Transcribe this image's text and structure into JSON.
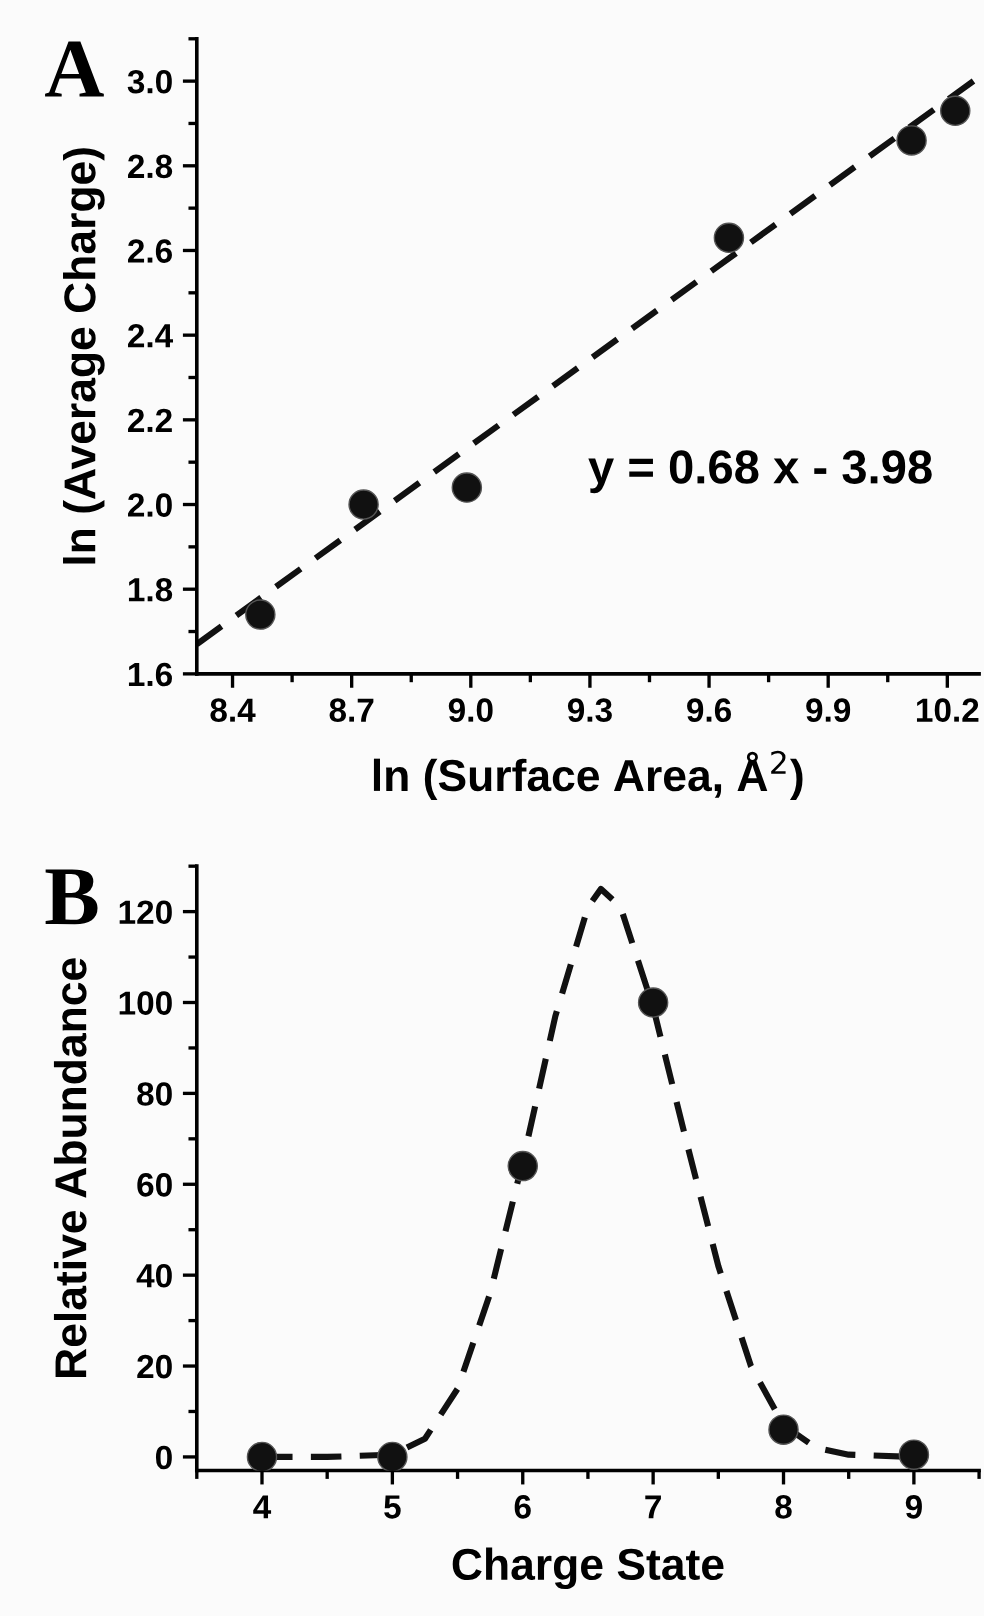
{
  "chart_data": [
    {
      "type": "scatter",
      "title": "A",
      "xlabel": "ln (Surface Area, Å$^{2}$)",
      "ylabel": "ln (Average Charge)",
      "xlim": [
        8.31,
        10.28
      ],
      "ylim": [
        1.6,
        3.1
      ],
      "xticks": [
        8.4,
        8.7,
        {
          "value": 9,
          "label": "9.0"
        },
        9.3,
        9.6,
        9.9,
        10.2
      ],
      "yticks": [
        1.6,
        1.8,
        {
          "value": 2,
          "label": "2.0"
        },
        2.2,
        2.4,
        2.6,
        2.8,
        {
          "value": 3,
          "label": "3.0"
        }
      ],
      "annotations": [
        "y = 0.68 x - 3.98"
      ],
      "grid": false,
      "legend": false,
      "x": [
        8.47,
        8.73,
        8.99,
        9.65,
        10.11,
        10.22
      ],
      "series": [
        {
          "color": "#111111",
          "marker": "circle",
          "values": [
            1.74,
            2.0,
            2.04,
            2.63,
            2.86,
            2.93
          ]
        },
        {
          "type": "line",
          "color": "#111111",
          "line_style": "dashed",
          "x": [
            8.31,
            10.28
          ],
          "values": [
            1.67,
            3.01
          ]
        }
      ]
    },
    {
      "type": "scatter",
      "title": "B",
      "xlabel": "Charge State",
      "ylabel": "Relative Abundance",
      "xlim": [
        3.5,
        9.5
      ],
      "ylim": [
        -3,
        130
      ],
      "xticks": [
        4,
        5,
        6,
        7,
        8,
        9
      ],
      "yticks": [
        0,
        20,
        40,
        60,
        80,
        100,
        120
      ],
      "grid": false,
      "legend": false,
      "x": [
        4,
        5,
        6,
        7,
        8,
        9
      ],
      "series": [
        {
          "type": "line",
          "color": "#111111",
          "line_style": "dashed",
          "x": [
            4,
            4.5,
            5,
            5.25,
            5.5,
            5.75,
            6,
            6.25,
            6.5,
            6.6,
            6.75,
            7,
            7.25,
            7.5,
            7.75,
            8,
            8.25,
            8.5,
            9
          ],
          "values": [
            0,
            0,
            0.5,
            4,
            15,
            36,
            65,
            97,
            121,
            125,
            121,
            99,
            70,
            42,
            20,
            7,
            2,
            0.5,
            0
          ]
        },
        {
          "color": "#111111",
          "marker": "circle",
          "values": [
            0,
            0,
            64,
            100,
            6,
            0.5
          ]
        }
      ]
    }
  ]
}
